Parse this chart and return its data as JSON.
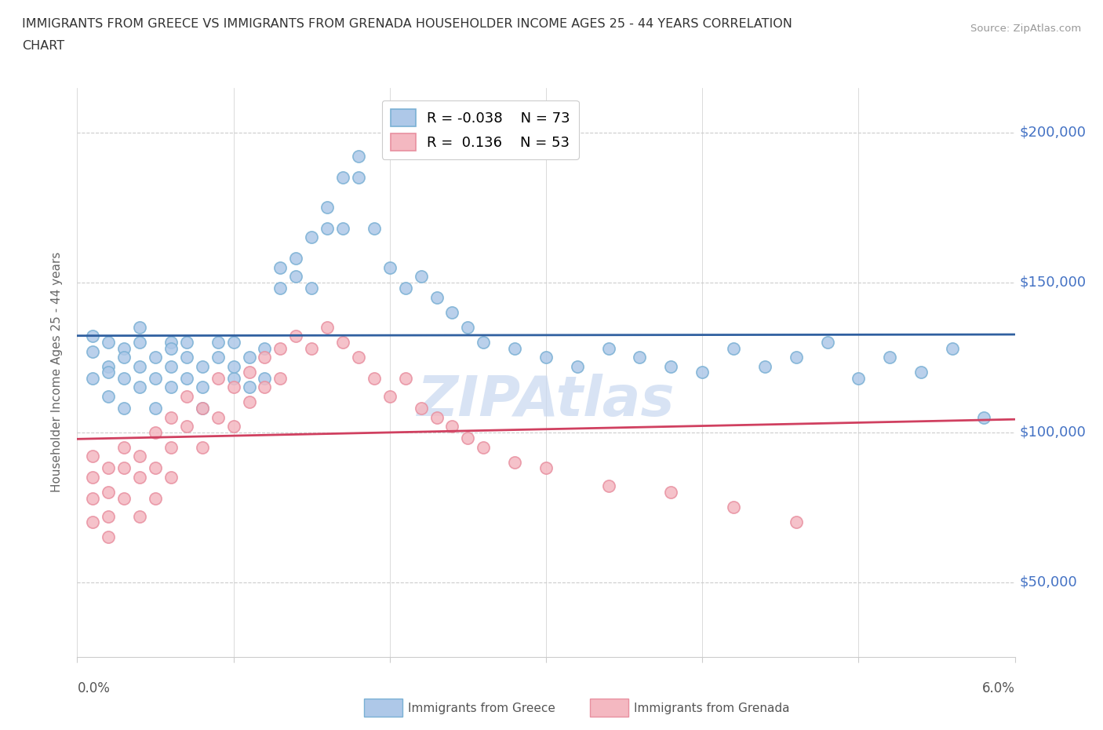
{
  "title_line1": "IMMIGRANTS FROM GREECE VS IMMIGRANTS FROM GRENADA HOUSEHOLDER INCOME AGES 25 - 44 YEARS CORRELATION",
  "title_line2": "CHART",
  "source": "Source: ZipAtlas.com",
  "ylabel": "Householder Income Ages 25 - 44 years",
  "yticks": [
    50000,
    100000,
    150000,
    200000
  ],
  "ytick_labels": [
    "$50,000",
    "$100,000",
    "$150,000",
    "$200,000"
  ],
  "xmin": 0.0,
  "xmax": 0.06,
  "ymin": 25000,
  "ymax": 215000,
  "legend_greece_r": "-0.038",
  "legend_greece_n": "73",
  "legend_grenada_r": "0.136",
  "legend_grenada_n": "53",
  "greece_face_color": "#aec8e8",
  "greece_edge_color": "#7ab0d4",
  "grenada_face_color": "#f4b8c1",
  "grenada_edge_color": "#e890a0",
  "greece_line_color": "#3060a0",
  "grenada_line_color": "#d04060",
  "watermark_color": "#c8d8f0",
  "greece_scatter_x": [
    0.001,
    0.001,
    0.001,
    0.002,
    0.002,
    0.002,
    0.002,
    0.003,
    0.003,
    0.003,
    0.003,
    0.004,
    0.004,
    0.004,
    0.004,
    0.005,
    0.005,
    0.005,
    0.006,
    0.006,
    0.006,
    0.006,
    0.007,
    0.007,
    0.007,
    0.008,
    0.008,
    0.008,
    0.009,
    0.009,
    0.01,
    0.01,
    0.01,
    0.011,
    0.011,
    0.012,
    0.012,
    0.013,
    0.013,
    0.014,
    0.014,
    0.015,
    0.015,
    0.016,
    0.016,
    0.017,
    0.017,
    0.018,
    0.018,
    0.019,
    0.02,
    0.021,
    0.022,
    0.023,
    0.024,
    0.025,
    0.026,
    0.028,
    0.03,
    0.032,
    0.034,
    0.036,
    0.038,
    0.04,
    0.042,
    0.044,
    0.046,
    0.048,
    0.05,
    0.052,
    0.054,
    0.056,
    0.058
  ],
  "greece_scatter_y": [
    127000,
    118000,
    132000,
    122000,
    130000,
    112000,
    120000,
    128000,
    118000,
    108000,
    125000,
    135000,
    122000,
    115000,
    130000,
    125000,
    118000,
    108000,
    130000,
    122000,
    115000,
    128000,
    125000,
    118000,
    130000,
    122000,
    115000,
    108000,
    125000,
    130000,
    118000,
    122000,
    130000,
    125000,
    115000,
    128000,
    118000,
    155000,
    148000,
    152000,
    158000,
    165000,
    148000,
    168000,
    175000,
    168000,
    185000,
    192000,
    185000,
    168000,
    155000,
    148000,
    152000,
    145000,
    140000,
    135000,
    130000,
    128000,
    125000,
    122000,
    128000,
    125000,
    122000,
    120000,
    128000,
    122000,
    125000,
    130000,
    118000,
    125000,
    120000,
    128000,
    105000
  ],
  "grenada_scatter_x": [
    0.001,
    0.001,
    0.001,
    0.001,
    0.002,
    0.002,
    0.002,
    0.002,
    0.003,
    0.003,
    0.003,
    0.004,
    0.004,
    0.004,
    0.005,
    0.005,
    0.005,
    0.006,
    0.006,
    0.006,
    0.007,
    0.007,
    0.008,
    0.008,
    0.009,
    0.009,
    0.01,
    0.01,
    0.011,
    0.011,
    0.012,
    0.012,
    0.013,
    0.013,
    0.014,
    0.015,
    0.016,
    0.017,
    0.018,
    0.019,
    0.02,
    0.021,
    0.022,
    0.023,
    0.024,
    0.025,
    0.026,
    0.028,
    0.03,
    0.034,
    0.038,
    0.042,
    0.046
  ],
  "grenada_scatter_y": [
    92000,
    85000,
    78000,
    70000,
    88000,
    80000,
    72000,
    65000,
    95000,
    88000,
    78000,
    92000,
    85000,
    72000,
    100000,
    88000,
    78000,
    105000,
    95000,
    85000,
    112000,
    102000,
    108000,
    95000,
    118000,
    105000,
    115000,
    102000,
    120000,
    110000,
    125000,
    115000,
    128000,
    118000,
    132000,
    128000,
    135000,
    130000,
    125000,
    118000,
    112000,
    118000,
    108000,
    105000,
    102000,
    98000,
    95000,
    90000,
    88000,
    82000,
    80000,
    75000,
    70000
  ]
}
